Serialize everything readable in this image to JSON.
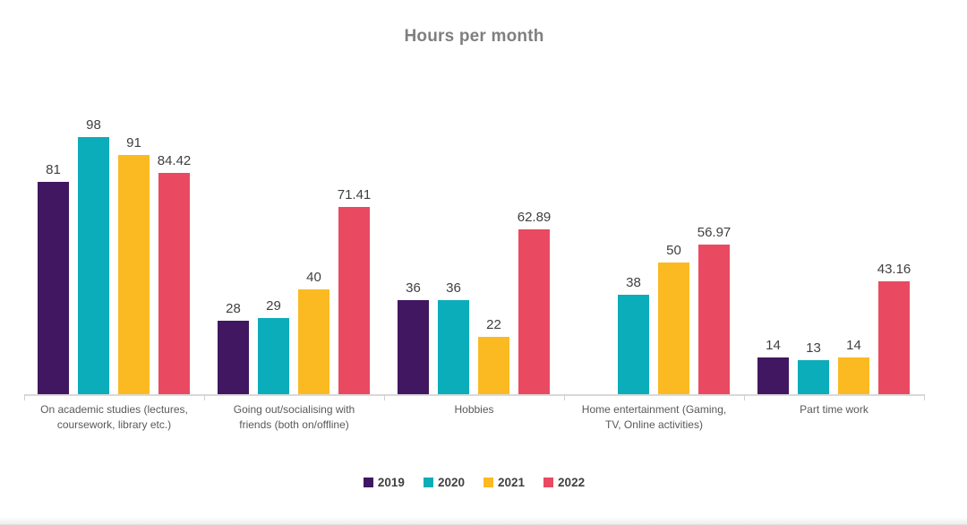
{
  "chart_data": {
    "type": "bar",
    "title": "Hours per month",
    "categories": [
      "On academic studies (lectures, coursework, library etc.)",
      "Going out/socialising with friends (both on/offline)",
      "Hobbies",
      "Home entertainment (Gaming, TV, Online activities)",
      "Part time work"
    ],
    "series": [
      {
        "name": "2019",
        "color": "#401760",
        "values": [
          81,
          28,
          36,
          null,
          14
        ]
      },
      {
        "name": "2020",
        "color": "#0cadba",
        "values": [
          98,
          29,
          36,
          38,
          13
        ]
      },
      {
        "name": "2021",
        "color": "#fbba21",
        "values": [
          91,
          40,
          22,
          50,
          14
        ]
      },
      {
        "name": "2022",
        "color": "#e94a62",
        "values": [
          84.42,
          71.41,
          62.89,
          56.97,
          43.16
        ]
      }
    ],
    "ylim": [
      0,
      100
    ],
    "grid": false,
    "axis_labels_visible": false,
    "data_labels_visible": true,
    "legend_position": "bottom",
    "title_color": "#7f7f7f",
    "data_label_color": "#404040",
    "category_label_color": "#595959",
    "axis_line_color": "#d9d9d9"
  }
}
